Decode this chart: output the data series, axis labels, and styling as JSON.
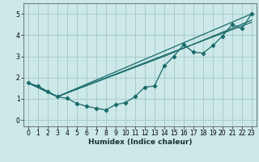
{
  "xlabel": "Humidex (Indice chaleur)",
  "background_color": "#cce8e8",
  "grid_color": "#aacccc",
  "line_color": "#1a6b6b",
  "xlim": [
    -0.5,
    23.5
  ],
  "ylim": [
    -0.3,
    5.5
  ],
  "xticks": [
    0,
    1,
    2,
    3,
    4,
    5,
    6,
    7,
    8,
    9,
    10,
    11,
    12,
    13,
    14,
    15,
    16,
    17,
    18,
    19,
    20,
    21,
    22,
    23
  ],
  "yticks": [
    0,
    1,
    2,
    3,
    4,
    5
  ],
  "line1_x": [
    0,
    1,
    2,
    3,
    4,
    5,
    6,
    7,
    8,
    9,
    10,
    11,
    12,
    13,
    14,
    15,
    16,
    17,
    18,
    19,
    20,
    21,
    22,
    23
  ],
  "line1_y": [
    1.75,
    1.6,
    1.35,
    1.1,
    1.02,
    0.78,
    0.65,
    0.55,
    0.48,
    0.72,
    0.82,
    1.1,
    1.55,
    1.6,
    2.55,
    3.0,
    3.55,
    3.2,
    3.15,
    3.5,
    3.95,
    4.5,
    4.3,
    5.0
  ],
  "line2_x": [
    0,
    3,
    23
  ],
  "line2_y": [
    1.75,
    1.1,
    5.0
  ],
  "line3_x": [
    0,
    3,
    14,
    23
  ],
  "line3_y": [
    1.75,
    1.1,
    3.0,
    4.7
  ],
  "line4_x": [
    0,
    3,
    14,
    23
  ],
  "line4_y": [
    1.75,
    1.1,
    3.05,
    4.6
  ]
}
